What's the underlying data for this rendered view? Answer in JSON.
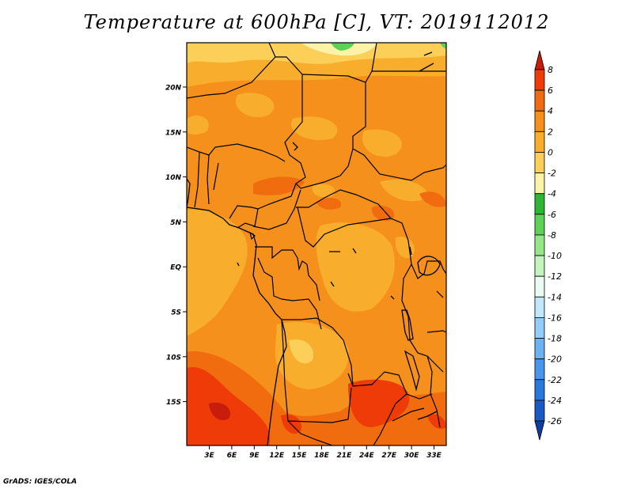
{
  "title": "Temperature at 600hPa [C], VT: 2019112012",
  "credit": "GrADS: IGES/COLA",
  "map": {
    "lat_labels": [
      "20N",
      "15N",
      "10N",
      "5N",
      "EQ",
      "5S",
      "10S",
      "15S"
    ],
    "lon_labels": [
      "3E",
      "6E",
      "9E",
      "12E",
      "15E",
      "18E",
      "21E",
      "24E",
      "27E",
      "30E",
      "33E"
    ]
  },
  "colorbar": {
    "labels": [
      "8",
      "6",
      "4",
      "2",
      "0",
      "-2",
      "-4",
      "-6",
      "-8",
      "-10",
      "-12",
      "-14",
      "-16",
      "-18",
      "-20",
      "-22",
      "-24",
      "-26"
    ],
    "colors": [
      "#c81c0c",
      "#ee3b07",
      "#f06c0f",
      "#f4901b",
      "#f8ae2c",
      "#fbcf58",
      "#fdf3a8",
      "#2fb535",
      "#5dd156",
      "#96e68a",
      "#c4f4bd",
      "#e9fbf3",
      "#c2e6fc",
      "#94cdf8",
      "#6cb2f3",
      "#4896ec",
      "#2a78dc",
      "#1a5ac4",
      "#0e3ea2",
      "#08217c",
      "#dde0f8"
    ]
  }
}
